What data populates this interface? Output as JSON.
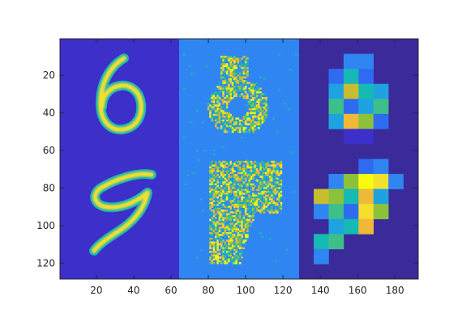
{
  "chart_data": {
    "type": "heatmap",
    "colormap": "parula",
    "colors": {
      "panel_left_background": "#3d2fc9",
      "panel_middle_background": "#2f86f2",
      "panel_right_background": "#3a2a9a",
      "digit_stroke": "#f2e02d",
      "axis": "#262626"
    },
    "xlim": [
      0.5,
      192.5
    ],
    "ylim": [
      128.5,
      0.5
    ],
    "x_ticks": [
      20,
      40,
      60,
      80,
      100,
      120,
      140,
      160,
      180
    ],
    "y_ticks": [
      20,
      40,
      60,
      80,
      100,
      120
    ],
    "grid": false,
    "panels": [
      {
        "content": "smooth digits",
        "x_range": [
          1,
          64
        ],
        "digits": [
          "6",
          "9"
        ]
      },
      {
        "content": "noisy digits",
        "x_range": [
          65,
          128
        ],
        "digits": [
          "6",
          "9"
        ]
      },
      {
        "content": "blocky digits",
        "x_range": [
          129,
          192
        ],
        "digits": [
          "6",
          "9"
        ]
      }
    ]
  }
}
